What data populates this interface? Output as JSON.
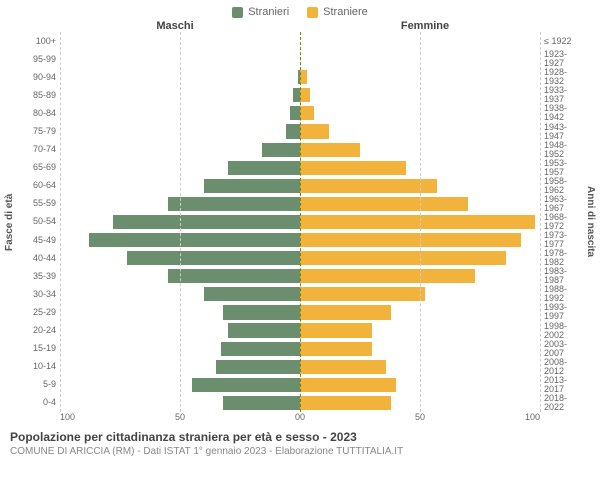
{
  "legend": {
    "male": {
      "label": "Stranieri",
      "color": "#6b8e6f"
    },
    "female": {
      "label": "Straniere",
      "color": "#f2b33d"
    }
  },
  "headers": {
    "male": "Maschi",
    "female": "Femmine"
  },
  "axis_labels": {
    "left": "Fasce di età",
    "right": "Anni di nascita"
  },
  "x_axis": {
    "max": 100,
    "ticks_left": [
      "100",
      "50",
      "0"
    ],
    "ticks_right": [
      "0",
      "50",
      "100"
    ]
  },
  "grid": {
    "positions_pct": [
      0,
      25,
      50,
      75,
      100
    ],
    "color": "#cccccc",
    "center_color": "#808000"
  },
  "bar_height_pct": 78,
  "background_color": "#ffffff",
  "rows": [
    {
      "age": "100+",
      "birth": "≤ 1922",
      "m": 0,
      "f": 0
    },
    {
      "age": "95-99",
      "birth": "1923-1927",
      "m": 0,
      "f": 0
    },
    {
      "age": "90-94",
      "birth": "1928-1932",
      "m": 1,
      "f": 3
    },
    {
      "age": "85-89",
      "birth": "1933-1937",
      "m": 3,
      "f": 4
    },
    {
      "age": "80-84",
      "birth": "1938-1942",
      "m": 4,
      "f": 6
    },
    {
      "age": "75-79",
      "birth": "1943-1947",
      "m": 6,
      "f": 12
    },
    {
      "age": "70-74",
      "birth": "1948-1952",
      "m": 16,
      "f": 25
    },
    {
      "age": "65-69",
      "birth": "1953-1957",
      "m": 30,
      "f": 44
    },
    {
      "age": "60-64",
      "birth": "1958-1962",
      "m": 40,
      "f": 57
    },
    {
      "age": "55-59",
      "birth": "1963-1967",
      "m": 55,
      "f": 70
    },
    {
      "age": "50-54",
      "birth": "1968-1972",
      "m": 78,
      "f": 98
    },
    {
      "age": "45-49",
      "birth": "1973-1977",
      "m": 88,
      "f": 92
    },
    {
      "age": "40-44",
      "birth": "1978-1982",
      "m": 72,
      "f": 86
    },
    {
      "age": "35-39",
      "birth": "1983-1987",
      "m": 55,
      "f": 73
    },
    {
      "age": "30-34",
      "birth": "1988-1992",
      "m": 40,
      "f": 52
    },
    {
      "age": "25-29",
      "birth": "1993-1997",
      "m": 32,
      "f": 38
    },
    {
      "age": "20-24",
      "birth": "1998-2002",
      "m": 30,
      "f": 30
    },
    {
      "age": "15-19",
      "birth": "2003-2007",
      "m": 33,
      "f": 30
    },
    {
      "age": "10-14",
      "birth": "2008-2012",
      "m": 35,
      "f": 36
    },
    {
      "age": "5-9",
      "birth": "2013-2017",
      "m": 45,
      "f": 40
    },
    {
      "age": "0-4",
      "birth": "2018-2022",
      "m": 32,
      "f": 38
    }
  ],
  "footer": {
    "title": "Popolazione per cittadinanza straniera per età e sesso - 2023",
    "subtitle": "COMUNE DI ARICCIA (RM) - Dati ISTAT 1° gennaio 2023 - Elaborazione TUTTITALIA.IT"
  }
}
